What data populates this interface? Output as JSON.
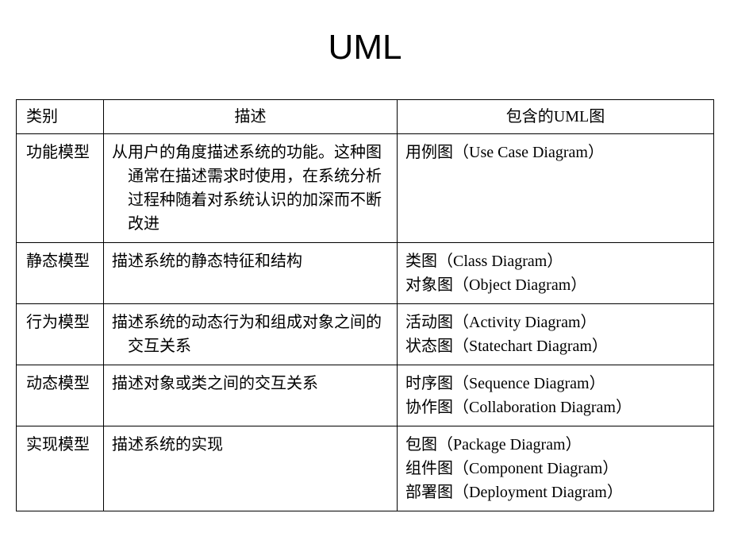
{
  "title": "UML",
  "table": {
    "headers": {
      "category": "类别",
      "description": "描述",
      "diagrams": "包含的UML图"
    },
    "rows": [
      {
        "category": "功能模型",
        "description": "从用户的角度描述系统的功能。这种图通常在描述需求时使用，在系统分析过程种随着对系统认识的加深而不断改进",
        "diagrams": [
          "用例图（Use Case Diagram）"
        ]
      },
      {
        "category": "静态模型",
        "description": "描述系统的静态特征和结构",
        "diagrams": [
          "类图（Class Diagram）",
          "对象图（Object Diagram）"
        ]
      },
      {
        "category": "行为模型",
        "description": "描述系统的动态行为和组成对象之间的交互关系",
        "diagrams": [
          "活动图（Activity Diagram）",
          "状态图（Statechart Diagram）"
        ]
      },
      {
        "category": "动态模型",
        "description": "描述对象或类之间的交互关系",
        "diagrams": [
          "时序图（Sequence Diagram）",
          "协作图（Collaboration Diagram）"
        ]
      },
      {
        "category": "实现模型",
        "description": "描述系统的实现",
        "diagrams": [
          "包图（Package Diagram）",
          "组件图（Component Diagram）",
          "部署图（Deployment Diagram）"
        ]
      }
    ]
  },
  "styling": {
    "background_color": "#ffffff",
    "text_color": "#000000",
    "border_color": "#000000",
    "title_fontsize": 44,
    "cell_fontsize": 20
  }
}
